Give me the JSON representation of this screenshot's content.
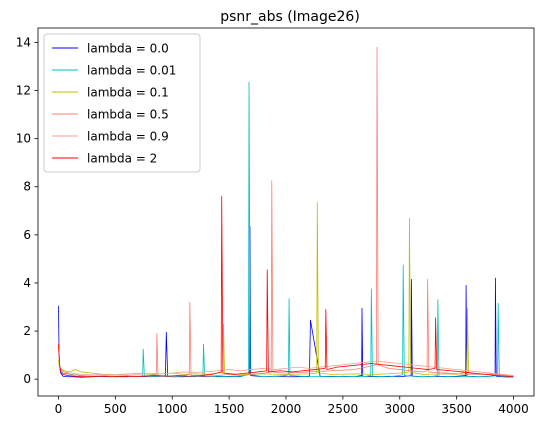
{
  "chart_data": {
    "type": "line",
    "title": "psnr_abs (Image26)",
    "xlabel": "",
    "ylabel": "",
    "xlim": [
      -180,
      4180
    ],
    "ylim": [
      -0.7,
      14.6
    ],
    "xticks": [
      0,
      500,
      1000,
      1500,
      2000,
      2500,
      3000,
      3500,
      4000
    ],
    "yticks": [
      0,
      2,
      4,
      6,
      8,
      10,
      12,
      14
    ],
    "grid": false,
    "legend_position": "top-left",
    "series": [
      {
        "name": "lambda = 0.0",
        "color": "#0000ff",
        "x": [
          0,
          5,
          10,
          20,
          40,
          80,
          120,
          200,
          300,
          400,
          500,
          600,
          700,
          800,
          900,
          940,
          948,
          960,
          1000,
          1100,
          1200,
          1300,
          1400,
          1500,
          1600,
          1680,
          1683,
          1690,
          1800,
          1900,
          2000,
          2100,
          2200,
          2206,
          2215,
          2300,
          2400,
          2500,
          2600,
          2665,
          2668,
          2675,
          2800,
          2900,
          3000,
          3100,
          3102,
          3110,
          3200,
          3300,
          3400,
          3500,
          3580,
          3583,
          3590,
          3700,
          3800,
          3838,
          3841,
          3848,
          3900,
          4000
        ],
        "y": [
          3.05,
          1.1,
          0.5,
          0.25,
          0.12,
          0.1,
          0.1,
          0.08,
          0.1,
          0.12,
          0.1,
          0.1,
          0.12,
          0.1,
          0.12,
          0.15,
          1.95,
          0.12,
          0.1,
          0.1,
          0.12,
          0.1,
          0.12,
          0.1,
          0.12,
          0.2,
          6.35,
          0.15,
          0.1,
          0.12,
          0.1,
          0.1,
          0.12,
          0.15,
          2.45,
          0.12,
          0.1,
          0.12,
          0.1,
          0.15,
          2.95,
          0.12,
          0.1,
          0.12,
          0.1,
          0.15,
          4.15,
          0.12,
          0.1,
          0.12,
          0.1,
          0.12,
          0.15,
          3.9,
          0.12,
          0.1,
          0.12,
          0.15,
          4.2,
          0.12,
          0.1,
          0.08
        ]
      },
      {
        "name": "lambda = 0.01",
        "color": "#00bfbf",
        "x": [
          0,
          10,
          40,
          100,
          200,
          300,
          400,
          500,
          600,
          700,
          740,
          745,
          755,
          800,
          900,
          1000,
          1100,
          1200,
          1270,
          1275,
          1285,
          1400,
          1500,
          1600,
          1670,
          1675,
          1685,
          1800,
          1900,
          2000,
          2022,
          2027,
          2035,
          2200,
          2400,
          2600,
          2700,
          2745,
          2750,
          2760,
          2900,
          3000,
          3025,
          3030,
          3040,
          3200,
          3300,
          3330,
          3335,
          3345,
          3500,
          3600,
          3700,
          3800,
          3860,
          3865,
          3875,
          3950,
          4000
        ],
        "y": [
          1.5,
          0.5,
          0.25,
          0.2,
          0.15,
          0.12,
          0.1,
          0.1,
          0.12,
          0.1,
          0.15,
          1.25,
          0.12,
          0.1,
          0.12,
          0.1,
          0.12,
          0.1,
          0.15,
          1.45,
          0.12,
          0.1,
          0.12,
          0.1,
          0.2,
          12.35,
          0.2,
          0.1,
          0.12,
          0.15,
          0.2,
          3.35,
          0.15,
          0.1,
          0.12,
          0.1,
          0.12,
          0.15,
          3.75,
          0.12,
          0.1,
          0.15,
          0.2,
          4.75,
          0.15,
          0.1,
          0.12,
          0.15,
          3.3,
          0.12,
          0.1,
          0.12,
          0.1,
          0.12,
          0.15,
          3.15,
          0.12,
          0.1,
          0.08
        ]
      },
      {
        "name": "lambda = 0.1",
        "color": "#bfbf00",
        "x": [
          0,
          10,
          50,
          100,
          150,
          200,
          300,
          400,
          500,
          600,
          700,
          800,
          900,
          1000,
          1100,
          1200,
          1300,
          1400,
          1445,
          1450,
          1460,
          1600,
          1800,
          2000,
          2200,
          2270,
          2275,
          2285,
          2400,
          2600,
          2800,
          3000,
          3080,
          3085,
          3095,
          3200,
          3400,
          3500,
          3590,
          3595,
          3605,
          3700,
          3800,
          3900,
          4000
        ],
        "y": [
          0.8,
          0.45,
          0.35,
          0.3,
          0.4,
          0.3,
          0.25,
          0.2,
          0.18,
          0.2,
          0.25,
          0.2,
          0.22,
          0.25,
          0.2,
          0.22,
          0.2,
          0.25,
          0.3,
          2.3,
          0.25,
          0.2,
          0.22,
          0.2,
          0.22,
          0.25,
          7.35,
          0.25,
          0.2,
          0.22,
          0.2,
          0.25,
          0.3,
          6.7,
          0.3,
          0.2,
          0.22,
          0.2,
          0.3,
          2.95,
          0.25,
          0.2,
          0.22,
          0.2,
          0.15
        ]
      },
      {
        "name": "lambda = 0.5",
        "color": "#fa8072",
        "x": [
          0,
          10,
          50,
          100,
          200,
          300,
          400,
          500,
          600,
          700,
          800,
          860,
          865,
          875,
          1000,
          1100,
          1150,
          1155,
          1165,
          1300,
          1400,
          1500,
          1600,
          1700,
          1800,
          1870,
          1875,
          1885,
          2000,
          2200,
          2400,
          2600,
          2700,
          2795,
          2800,
          2810,
          2900,
          3000,
          3100,
          3200,
          3240,
          3245,
          3255,
          3400,
          3600,
          3800,
          3900,
          4000
        ],
        "y": [
          1.5,
          0.5,
          0.3,
          0.2,
          0.15,
          0.12,
          0.15,
          0.12,
          0.15,
          0.12,
          0.15,
          0.2,
          1.9,
          0.15,
          0.12,
          0.15,
          0.2,
          3.2,
          0.15,
          0.12,
          0.15,
          0.2,
          0.15,
          0.2,
          0.25,
          0.3,
          8.25,
          0.3,
          0.25,
          0.3,
          0.35,
          0.4,
          0.5,
          0.6,
          13.8,
          0.6,
          0.45,
          0.4,
          0.35,
          0.3,
          0.35,
          4.15,
          0.3,
          0.25,
          0.2,
          0.2,
          0.18,
          0.12
        ]
      },
      {
        "name": "lambda = 0.9",
        "color": "#f4a090",
        "x": [
          0,
          10,
          50,
          100,
          200,
          300,
          400,
          500,
          600,
          700,
          800,
          900,
          1000,
          1100,
          1200,
          1300,
          1400,
          1500,
          1600,
          1700,
          1800,
          1900,
          2000,
          2100,
          2200,
          2300,
          2400,
          2500,
          2600,
          2700,
          2800,
          2900,
          3000,
          3100,
          3200,
          3300,
          3400,
          3500,
          3600,
          3700,
          3800,
          3900,
          4000
        ],
        "y": [
          1.4,
          0.5,
          0.3,
          0.25,
          0.2,
          0.18,
          0.2,
          0.18,
          0.22,
          0.2,
          0.25,
          0.22,
          0.25,
          0.3,
          0.28,
          0.3,
          0.35,
          0.4,
          0.35,
          0.4,
          0.45,
          0.4,
          0.45,
          0.5,
          0.45,
          0.5,
          0.55,
          0.6,
          0.65,
          0.7,
          0.75,
          0.7,
          0.65,
          0.6,
          0.55,
          0.5,
          0.45,
          0.4,
          0.35,
          0.3,
          0.25,
          0.2,
          0.15
        ]
      },
      {
        "name": "lambda = 2",
        "color": "#ff0000",
        "x": [
          0,
          5,
          10,
          20,
          40,
          80,
          150,
          250,
          350,
          450,
          550,
          650,
          750,
          850,
          950,
          1050,
          1150,
          1250,
          1350,
          1430,
          1435,
          1445,
          1550,
          1650,
          1750,
          1830,
          1835,
          1845,
          1950,
          2050,
          2150,
          2250,
          2345,
          2350,
          2360,
          2450,
          2550,
          2650,
          2750,
          2850,
          2950,
          3050,
          3150,
          3250,
          3310,
          3315,
          3325,
          3450,
          3550,
          3650,
          3750,
          3850,
          3950,
          4000
        ],
        "y": [
          1.45,
          1.0,
          0.6,
          0.3,
          0.2,
          0.15,
          0.12,
          0.1,
          0.12,
          0.1,
          0.12,
          0.1,
          0.12,
          0.15,
          0.12,
          0.15,
          0.12,
          0.15,
          0.2,
          0.3,
          7.6,
          0.25,
          0.2,
          0.25,
          0.3,
          0.35,
          4.55,
          0.3,
          0.35,
          0.3,
          0.35,
          0.4,
          0.45,
          2.9,
          0.4,
          0.5,
          0.55,
          0.6,
          0.65,
          0.6,
          0.55,
          0.5,
          0.45,
          0.4,
          0.45,
          2.55,
          0.4,
          0.35,
          0.3,
          0.25,
          0.2,
          0.15,
          0.12,
          0.1
        ]
      }
    ]
  }
}
